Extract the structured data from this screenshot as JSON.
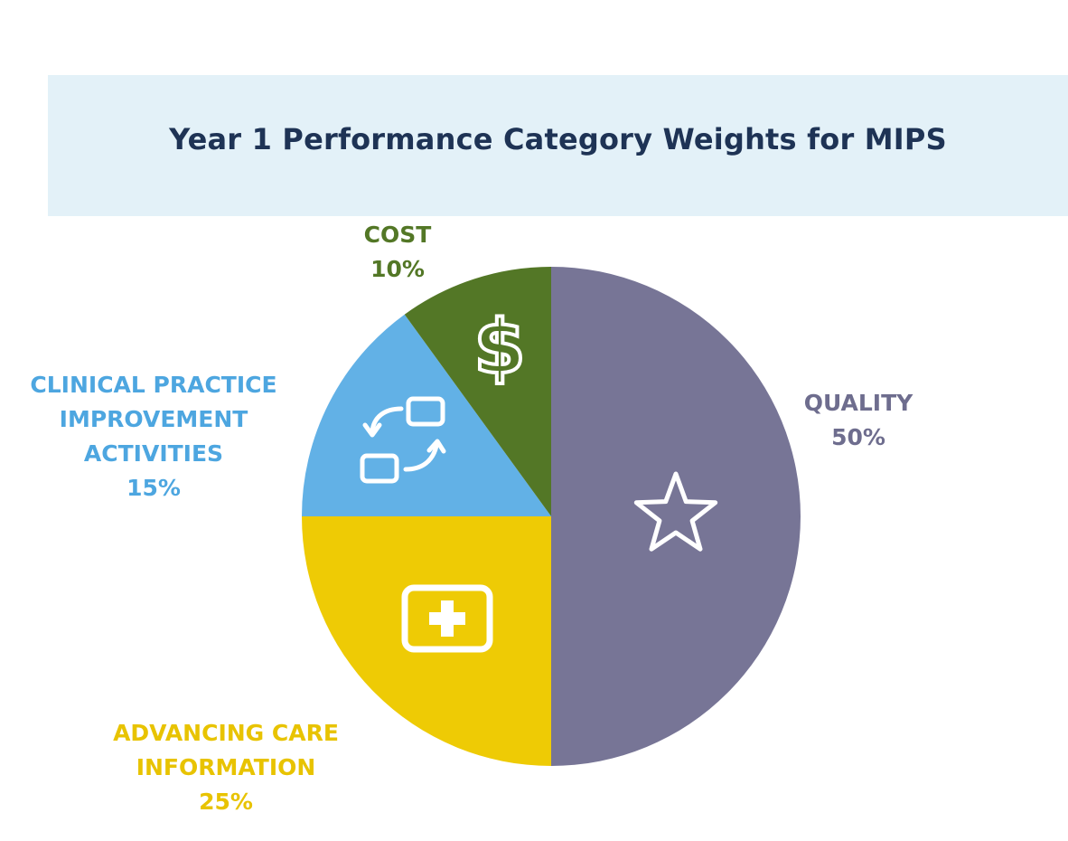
{
  "chart_data": {
    "type": "pie",
    "title": "Year 1 Performance Category Weights for MIPS",
    "slices": [
      {
        "name_lines": [
          "QUALITY"
        ],
        "value": 50,
        "value_label": "50%",
        "color": "#777596",
        "icon": "star-icon"
      },
      {
        "name_lines": [
          "ADVANCING CARE",
          "INFORMATION"
        ],
        "value": 25,
        "value_label": "25%",
        "color": "#eecb05",
        "icon": "medical-cross-icon"
      },
      {
        "name_lines": [
          "CLINICAL PRACTICE",
          "IMPROVEMENT",
          "ACTIVITIES"
        ],
        "value": 15,
        "value_label": "15%",
        "color": "#62b1e6",
        "icon": "exchange-arrows-icon"
      },
      {
        "name_lines": [
          "COST"
        ],
        "value": 10,
        "value_label": "10%",
        "color": "#537726",
        "icon": "dollar-icon"
      }
    ],
    "start_angle": "12 o'clock",
    "direction": "clockwise",
    "legend": "none"
  },
  "colors": {
    "title_band": "#e3f1f8",
    "title_text": "#1e3355",
    "icon_stroke": "#ffffff"
  }
}
